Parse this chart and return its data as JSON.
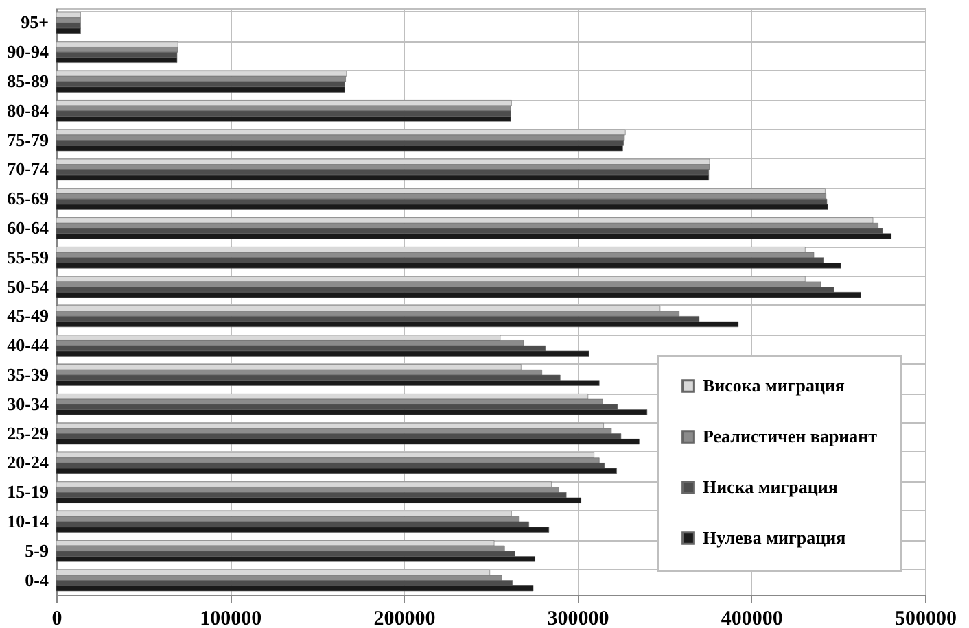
{
  "chart_data": {
    "type": "bar",
    "orientation": "horizontal",
    "categories": [
      "95+",
      "90-94",
      "85-89",
      "80-84",
      "75-79",
      "70-74",
      "65-69",
      "60-64",
      "55-59",
      "50-54",
      "45-49",
      "40-44",
      "35-39",
      "30-34",
      "25-29",
      "20-24",
      "15-19",
      "10-14",
      "5-9",
      "0-4"
    ],
    "series": [
      {
        "name": "Висока миграция",
        "color": "#d9d9d9",
        "values": [
          14000,
          70000,
          167000,
          262000,
          327500,
          376000,
          442500,
          470000,
          431000,
          431000,
          347500,
          255500,
          267500,
          306000,
          315000,
          309500,
          285000,
          262000,
          252000,
          249500
        ]
      },
      {
        "name": "Реалистичен вариант",
        "color": "#8c8c8c",
        "values": [
          14000,
          70000,
          166500,
          261500,
          327000,
          376000,
          443000,
          473000,
          436000,
          440000,
          358500,
          269000,
          279500,
          314500,
          319500,
          312500,
          289000,
          266500,
          258000,
          256500
        ]
      },
      {
        "name": "Ниска миграция",
        "color": "#4d4d4d",
        "values": [
          14000,
          69500,
          166000,
          261500,
          326500,
          375500,
          443500,
          475500,
          441500,
          447500,
          370000,
          281500,
          290000,
          323000,
          325000,
          315500,
          293500,
          272000,
          264000,
          262500
        ]
      },
      {
        "name": "Нулева миграция",
        "color": "#1a1a1a",
        "values": [
          14000,
          69500,
          166000,
          261500,
          326000,
          375500,
          444000,
          480500,
          451500,
          463000,
          392500,
          306500,
          312500,
          340000,
          335500,
          322500,
          302000,
          283500,
          275500,
          274500
        ]
      }
    ],
    "xlim": [
      0,
      500000
    ],
    "xticks": [
      0,
      100000,
      200000,
      300000,
      400000,
      500000
    ],
    "grid": true,
    "legend": "bottom right"
  }
}
